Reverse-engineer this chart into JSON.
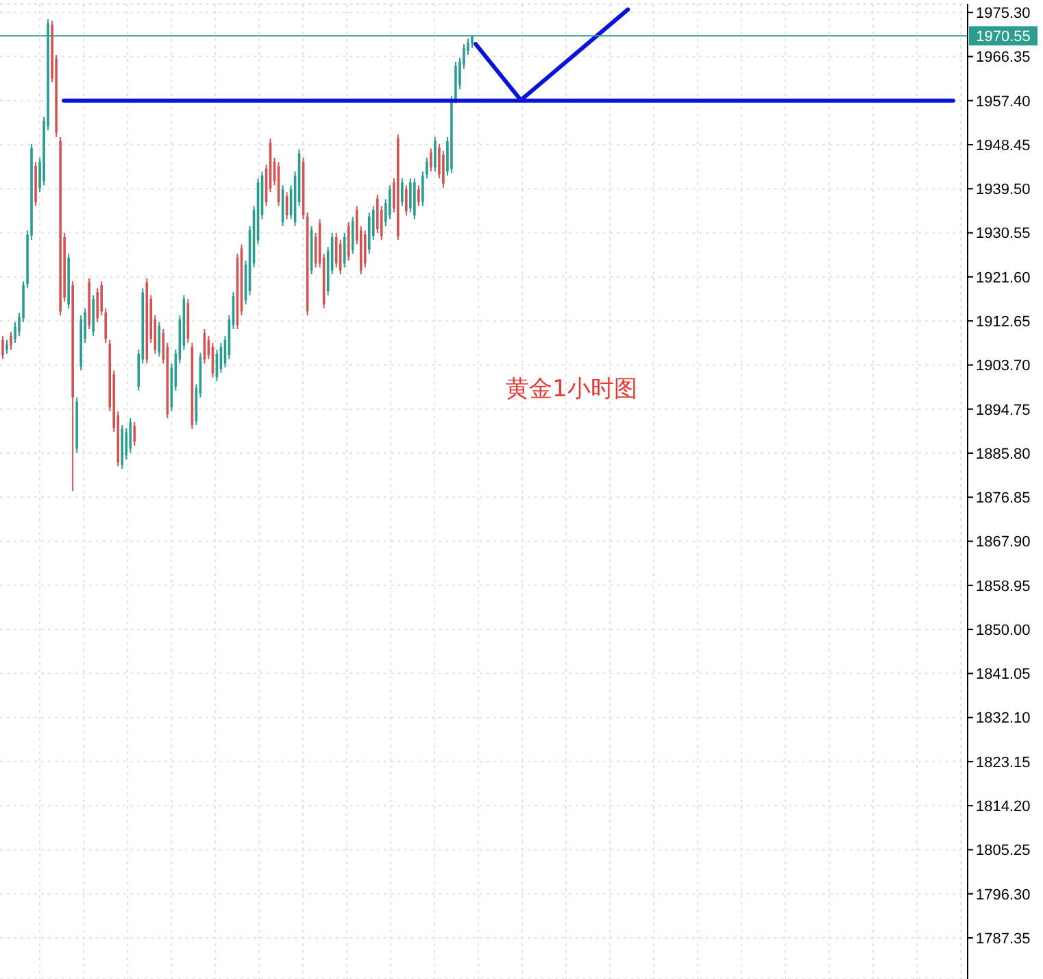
{
  "chart_data": {
    "type": "candlestick",
    "tick_labels": "y",
    "grid": true,
    "categories": [
      null,
      null,
      null,
      null,
      null,
      null,
      null,
      null,
      null,
      null,
      null,
      null,
      null,
      null,
      null,
      null,
      null,
      null,
      null,
      null,
      null,
      null,
      null,
      null,
      null,
      null,
      null,
      null,
      null,
      null,
      null,
      null,
      null,
      null,
      null,
      null,
      null,
      null,
      null,
      null,
      null,
      null,
      null,
      null,
      null,
      null,
      null,
      null,
      null,
      null,
      null,
      null,
      null,
      null,
      null,
      null,
      null,
      null,
      null,
      null,
      null,
      null,
      null,
      null,
      null,
      null,
      null,
      null,
      null,
      null,
      null,
      null,
      null,
      null,
      null,
      null,
      null,
      null,
      null,
      null,
      null,
      null,
      null,
      null,
      null,
      null,
      null,
      null,
      null,
      null,
      null,
      null,
      null,
      null,
      null,
      null,
      null,
      null,
      null,
      null,
      null,
      null,
      null,
      null,
      null,
      null,
      null,
      null,
      null,
      null,
      null,
      null,
      null,
      null,
      null,
      null,
      null,
      null,
      null,
      null,
      null,
      null,
      null,
      null,
      null,
      null,
      null,
      null,
      null,
      null,
      null,
      null,
      null,
      null,
      null,
      null,
      null,
      null,
      null,
      null,
      null,
      null,
      null,
      null,
      null,
      null,
      null,
      null,
      null,
      null,
      null,
      null,
      null,
      null,
      null,
      null,
      null,
      null,
      null,
      null,
      null,
      null,
      null,
      null,
      null,
      null,
      null,
      null,
      null,
      null,
      null,
      null,
      null,
      null,
      null,
      null,
      null,
      null,
      null,
      null,
      null,
      null,
      null,
      null,
      null,
      null,
      null,
      null,
      null,
      null,
      null,
      null,
      null,
      null,
      null,
      null,
      null,
      null,
      null,
      null,
      null,
      null,
      null,
      null,
      null,
      null,
      null,
      null,
      null,
      null,
      null,
      null,
      null,
      null,
      null,
      null,
      null,
      null,
      null,
      null,
      null,
      null,
      null,
      null,
      null,
      null,
      null,
      null,
      null,
      null,
      null,
      null,
      null,
      null,
      null
    ],
    "ohlc": [
      [
        1908.8,
        1909.6,
        1904.9,
        1905.7
      ],
      [
        1906.8,
        1908.8,
        1906.0,
        1907.9
      ],
      [
        1909.6,
        1910.4,
        1906.8,
        1907.6
      ],
      [
        1909.0,
        1912.4,
        1908.2,
        1911.5
      ],
      [
        1910.5,
        1914.3,
        1909.6,
        1913.5
      ],
      [
        1913.2,
        1920.7,
        1912.4,
        1919.9
      ],
      [
        1920.2,
        1931.0,
        1919.3,
        1930.2
      ],
      [
        1930.0,
        1948.6,
        1929.1,
        1947.8
      ],
      [
        1944.1,
        1944.9,
        1936.0,
        1936.8
      ],
      [
        1939.6,
        1945.8,
        1938.8,
        1945.0
      ],
      [
        1941.0,
        1954.1,
        1940.2,
        1953.3
      ],
      [
        1952.2,
        1973.9,
        1951.4,
        1973.1
      ],
      [
        1972.8,
        1973.6,
        1961.1,
        1961.9
      ],
      [
        1965.9,
        1966.7,
        1950.0,
        1950.9
      ],
      [
        1949.2,
        1950.0,
        1913.8,
        1914.6
      ],
      [
        1929.7,
        1930.5,
        1916.6,
        1917.4
      ],
      [
        1916.0,
        1926.3,
        1915.2,
        1925.5
      ],
      [
        1919.9,
        1920.7,
        1878.1,
        1897.1
      ],
      [
        1886.7,
        1897.1,
        1885.9,
        1896.3
      ],
      [
        1903.4,
        1913.8,
        1902.6,
        1913.0
      ],
      [
        1909.0,
        1915.2,
        1908.2,
        1914.4
      ],
      [
        1920.5,
        1921.3,
        1911.0,
        1911.8
      ],
      [
        1910.5,
        1917.9,
        1909.6,
        1917.1
      ],
      [
        1918.5,
        1919.3,
        1912.4,
        1913.2
      ],
      [
        1919.9,
        1920.7,
        1913.8,
        1914.6
      ],
      [
        1914.4,
        1915.2,
        1908.2,
        1909.0
      ],
      [
        1908.0,
        1908.8,
        1894.3,
        1895.1
      ],
      [
        1901.8,
        1902.6,
        1890.1,
        1890.9
      ],
      [
        1893.5,
        1894.3,
        1883.1,
        1883.9
      ],
      [
        1883.4,
        1891.5,
        1882.6,
        1890.7
      ],
      [
        1885.3,
        1890.9,
        1884.5,
        1890.1
      ],
      [
        1886.7,
        1892.9,
        1885.9,
        1892.1
      ],
      [
        1891.3,
        1892.1,
        1887.3,
        1888.1
      ],
      [
        1899.3,
        1906.8,
        1898.5,
        1906.0
      ],
      [
        1904.8,
        1919.3,
        1904.0,
        1918.5
      ],
      [
        1920.5,
        1921.3,
        1904.0,
        1904.8
      ],
      [
        1917.1,
        1917.9,
        1908.2,
        1909.0
      ],
      [
        1913.0,
        1913.8,
        1906.0,
        1906.8
      ],
      [
        1906.2,
        1912.4,
        1905.4,
        1911.6
      ],
      [
        1910.2,
        1911.0,
        1904.0,
        1904.8
      ],
      [
        1907.4,
        1908.2,
        1892.9,
        1893.7
      ],
      [
        1895.1,
        1904.0,
        1894.3,
        1903.2
      ],
      [
        1899.3,
        1906.8,
        1898.5,
        1906.0
      ],
      [
        1904.8,
        1913.8,
        1904.0,
        1913.0
      ],
      [
        1907.6,
        1917.9,
        1906.8,
        1917.1
      ],
      [
        1916.3,
        1917.1,
        1908.2,
        1909.0
      ],
      [
        1907.4,
        1908.2,
        1890.7,
        1891.5
      ],
      [
        1892.3,
        1899.8,
        1891.5,
        1899.0
      ],
      [
        1897.9,
        1906.2,
        1897.1,
        1905.4
      ],
      [
        1910.2,
        1911.0,
        1904.0,
        1904.8
      ],
      [
        1908.8,
        1909.6,
        1904.9,
        1905.7
      ],
      [
        1907.4,
        1908.2,
        1901.2,
        1902.0
      ],
      [
        1901.2,
        1906.8,
        1900.4,
        1906.0
      ],
      [
        1902.9,
        1908.2,
        1902.1,
        1907.4
      ],
      [
        1904.0,
        1909.6,
        1903.2,
        1908.8
      ],
      [
        1905.7,
        1913.8,
        1904.9,
        1913.0
      ],
      [
        1911.8,
        1918.5,
        1911.0,
        1917.7
      ],
      [
        1925.5,
        1926.3,
        1911.0,
        1911.8
      ],
      [
        1927.4,
        1928.2,
        1913.8,
        1914.6
      ],
      [
        1916.8,
        1924.9,
        1916.0,
        1924.1
      ],
      [
        1918.7,
        1931.9,
        1917.9,
        1931.1
      ],
      [
        1924.3,
        1936.0,
        1923.5,
        1935.2
      ],
      [
        1929.0,
        1941.6,
        1928.2,
        1940.8
      ],
      [
        1934.1,
        1943.0,
        1933.3,
        1942.2
      ],
      [
        1943.6,
        1944.4,
        1936.0,
        1936.8
      ],
      [
        1948.9,
        1949.7,
        1938.8,
        1939.6
      ],
      [
        1945.0,
        1945.8,
        1940.2,
        1941.0
      ],
      [
        1944.1,
        1944.9,
        1936.0,
        1936.8
      ],
      [
        1932.7,
        1940.2,
        1931.9,
        1939.4
      ],
      [
        1938.0,
        1938.8,
        1933.3,
        1934.1
      ],
      [
        1934.1,
        1940.2,
        1933.3,
        1939.4
      ],
      [
        1932.7,
        1943.0,
        1931.9,
        1942.2
      ],
      [
        1936.8,
        1947.5,
        1936.0,
        1946.7
      ],
      [
        1945.0,
        1945.8,
        1933.3,
        1934.1
      ],
      [
        1933.9,
        1934.7,
        1913.8,
        1914.6
      ],
      [
        1922.9,
        1931.9,
        1922.1,
        1931.1
      ],
      [
        1929.7,
        1930.5,
        1923.5,
        1924.3
      ],
      [
        1932.5,
        1933.3,
        1923.5,
        1924.3
      ],
      [
        1925.5,
        1926.3,
        1915.2,
        1916.0
      ],
      [
        1918.7,
        1927.7,
        1917.9,
        1926.9
      ],
      [
        1922.9,
        1930.5,
        1922.1,
        1929.7
      ],
      [
        1929.7,
        1930.5,
        1923.5,
        1924.3
      ],
      [
        1928.3,
        1929.1,
        1922.1,
        1922.9
      ],
      [
        1924.3,
        1930.5,
        1923.5,
        1929.7
      ],
      [
        1931.9,
        1932.7,
        1924.9,
        1925.7
      ],
      [
        1927.1,
        1933.8,
        1926.3,
        1933.0
      ],
      [
        1935.2,
        1936.0,
        1928.2,
        1929.0
      ],
      [
        1931.1,
        1931.9,
        1922.1,
        1922.9
      ],
      [
        1930.2,
        1931.0,
        1923.5,
        1924.3
      ],
      [
        1927.1,
        1934.7,
        1926.3,
        1933.9
      ],
      [
        1929.9,
        1936.0,
        1929.1,
        1935.2
      ],
      [
        1937.5,
        1938.3,
        1930.5,
        1931.3
      ],
      [
        1935.2,
        1936.0,
        1929.1,
        1929.9
      ],
      [
        1932.7,
        1937.4,
        1931.9,
        1936.6
      ],
      [
        1934.1,
        1940.2,
        1933.3,
        1939.4
      ],
      [
        1940.8,
        1941.6,
        1934.7,
        1935.5
      ],
      [
        1949.7,
        1950.5,
        1929.1,
        1929.9
      ],
      [
        1936.8,
        1941.6,
        1936.0,
        1940.8
      ],
      [
        1939.4,
        1940.2,
        1934.1,
        1934.9
      ],
      [
        1935.5,
        1941.6,
        1934.7,
        1940.8
      ],
      [
        1934.1,
        1941.6,
        1933.3,
        1940.8
      ],
      [
        1939.4,
        1940.2,
        1936.0,
        1936.8
      ],
      [
        1936.8,
        1943.0,
        1936.0,
        1942.2
      ],
      [
        1942.4,
        1945.8,
        1941.6,
        1945.0
      ],
      [
        1946.9,
        1947.7,
        1943.0,
        1943.8
      ],
      [
        1943.8,
        1950.0,
        1943.0,
        1949.2
      ],
      [
        1947.8,
        1948.6,
        1941.6,
        1942.4
      ],
      [
        1946.4,
        1947.2,
        1939.7,
        1940.5
      ],
      [
        1943.0,
        1950.0,
        1942.2,
        1949.2
      ],
      [
        1943.5,
        1958.3,
        1942.7,
        1957.5
      ],
      [
        1957.7,
        1965.3,
        1956.9,
        1964.5
      ],
      [
        1960.5,
        1966.1,
        1959.7,
        1965.3
      ],
      [
        1964.7,
        1968.9,
        1963.9,
        1968.1
      ],
      [
        1967.5,
        1970.0,
        1966.7,
        1969.2
      ],
      [
        1969.0,
        1970.6,
        1968.1,
        1970.55
      ],
      null,
      null,
      null,
      null,
      null,
      null,
      null,
      null,
      null,
      null,
      null,
      null,
      null,
      null,
      null,
      null,
      null,
      null,
      null,
      null,
      null,
      null,
      null,
      null,
      null,
      null,
      null,
      null,
      null,
      null,
      null,
      null,
      null,
      null,
      null,
      null,
      null,
      null,
      null,
      null,
      null,
      null,
      null,
      null,
      null,
      null,
      null,
      null,
      null,
      null,
      null,
      null,
      null,
      null,
      null,
      null,
      null,
      null,
      null,
      null,
      null,
      null,
      null,
      null,
      null,
      null,
      null,
      null,
      null,
      null,
      null,
      null,
      null,
      null,
      null,
      null,
      null,
      null,
      null,
      null,
      null,
      null,
      null,
      null,
      null,
      null,
      null,
      null,
      null,
      null,
      null,
      null,
      null,
      null,
      null,
      null,
      null,
      null,
      null,
      null,
      null,
      null,
      null,
      null,
      null,
      null,
      null,
      null,
      null,
      null,
      null,
      null,
      null,
      null,
      null,
      null,
      null,
      null,
      null,
      null
    ],
    "colors": [
      "#d05454",
      "#2a9d8f",
      "#d05454",
      "#2a9d8f",
      "#2a9d8f",
      "#2a9d8f",
      "#2a9d8f",
      "#2a9d8f",
      "#d05454",
      "#2a9d8f",
      "#2a9d8f",
      "#2a9d8f",
      "#d05454",
      "#d05454",
      "#d05454",
      "#d05454",
      "#2a9d8f",
      "#d05454",
      "#2a9d8f",
      "#2a9d8f",
      "#2a9d8f",
      "#d05454",
      "#2a9d8f",
      "#d05454",
      "#d05454",
      "#d05454",
      "#d05454",
      "#d05454",
      "#d05454",
      "#2a9d8f",
      "#2a9d8f",
      "#2a9d8f",
      "#d05454",
      "#2a9d8f",
      "#2a9d8f",
      "#d05454",
      "#d05454",
      "#d05454",
      "#2a9d8f",
      "#d05454",
      "#d05454",
      "#2a9d8f",
      "#2a9d8f",
      "#2a9d8f",
      "#2a9d8f",
      "#d05454",
      "#d05454",
      "#2a9d8f",
      "#2a9d8f",
      "#d05454",
      "#d05454",
      "#d05454",
      "#2a9d8f",
      "#2a9d8f",
      "#2a9d8f",
      "#2a9d8f",
      "#2a9d8f",
      "#d05454",
      "#d05454",
      "#2a9d8f",
      "#2a9d8f",
      "#2a9d8f",
      "#2a9d8f",
      "#2a9d8f",
      "#d05454",
      "#d05454",
      "#d05454",
      "#d05454",
      "#2a9d8f",
      "#d05454",
      "#2a9d8f",
      "#2a9d8f",
      "#2a9d8f",
      "#d05454",
      "#d05454",
      "#2a9d8f",
      "#d05454",
      "#d05454",
      "#d05454",
      "#2a9d8f",
      "#2a9d8f",
      "#d05454",
      "#d05454",
      "#2a9d8f",
      "#d05454",
      "#2a9d8f",
      "#d05454",
      "#d05454",
      "#d05454",
      "#2a9d8f",
      "#2a9d8f",
      "#d05454",
      "#d05454",
      "#2a9d8f",
      "#2a9d8f",
      "#d05454",
      "#d05454",
      "#2a9d8f",
      "#d05454",
      "#2a9d8f",
      "#2a9d8f",
      "#d05454",
      "#2a9d8f",
      "#2a9d8f",
      "#d05454",
      "#2a9d8f",
      "#d05454",
      "#d05454",
      "#2a9d8f",
      "#2a9d8f",
      "#2a9d8f",
      "#2a9d8f",
      "#2a9d8f",
      "#2a9d8f",
      "#2a9d8f",
      null,
      null,
      null,
      null,
      null,
      null,
      null,
      null,
      null,
      null,
      null,
      null,
      null,
      null,
      null,
      null,
      null,
      null,
      null,
      null,
      null,
      null,
      null,
      null,
      null,
      null,
      null,
      null,
      null,
      null,
      null,
      null,
      null,
      null,
      null,
      null,
      null,
      null,
      null,
      null,
      null,
      null,
      null,
      null,
      null,
      null,
      null,
      null,
      null,
      null,
      null,
      null,
      null,
      null,
      null,
      null,
      null,
      null,
      null,
      null,
      null,
      null,
      null,
      null,
      null,
      null,
      null,
      null,
      null,
      null,
      null,
      null,
      null,
      null,
      null,
      null,
      null,
      null,
      null,
      null,
      null,
      null,
      null,
      null,
      null,
      null,
      null,
      null,
      null,
      null,
      null,
      null,
      null,
      null,
      null,
      null,
      null,
      null,
      null,
      null,
      null,
      null,
      null,
      null,
      null,
      null,
      null,
      null,
      null,
      null,
      null,
      null,
      null,
      null,
      null,
      null,
      null,
      null,
      null,
      null
    ],
    "series": [
      {
        "type": "line",
        "color": "#0a14d8",
        "values": [
          null,
          null,
          null,
          null,
          null,
          null,
          null,
          null,
          null,
          null,
          null,
          null,
          null,
          null,
          null,
          1957.4,
          null,
          null,
          null,
          null,
          null,
          null,
          null,
          null,
          null,
          null,
          null,
          null,
          null,
          null,
          null,
          null,
          null,
          null,
          null,
          null,
          null,
          null,
          null,
          null,
          null,
          null,
          null,
          null,
          null,
          null,
          null,
          null,
          null,
          null,
          null,
          null,
          null,
          null,
          null,
          null,
          null,
          null,
          null,
          null,
          null,
          null,
          null,
          null,
          null,
          null,
          null,
          null,
          null,
          null,
          null,
          null,
          null,
          null,
          null,
          null,
          null,
          null,
          null,
          null,
          null,
          null,
          null,
          null,
          null,
          null,
          null,
          null,
          null,
          null,
          null,
          null,
          null,
          null,
          null,
          null,
          null,
          null,
          null,
          null,
          null,
          null,
          null,
          null,
          null,
          null,
          null,
          null,
          null,
          null,
          null,
          null,
          null,
          null,
          null,
          null,
          null,
          null,
          null,
          null,
          null,
          null,
          null,
          null,
          null,
          null,
          null,
          null,
          null,
          null,
          null,
          null,
          null,
          null,
          null,
          null,
          null,
          null,
          null,
          null,
          null,
          null,
          null,
          null,
          null,
          null,
          null,
          null,
          null,
          null,
          null,
          null,
          null,
          null,
          null,
          null,
          null,
          null,
          null,
          null,
          null,
          null,
          null,
          null,
          null,
          null,
          null,
          null,
          null,
          null,
          null,
          null,
          null,
          null,
          null,
          null,
          null,
          null,
          null,
          null,
          null,
          null,
          null,
          null,
          null,
          null,
          null,
          null,
          null,
          null,
          null,
          null,
          null,
          null,
          null,
          null,
          null,
          null,
          null,
          null,
          null,
          null,
          null,
          null,
          null,
          null,
          null,
          null,
          null,
          null,
          null,
          null,
          null,
          null,
          null,
          null,
          null,
          null,
          null,
          null,
          null,
          null,
          null,
          null,
          null,
          null,
          null,
          null,
          null,
          null,
          null,
          1957.4,
          null,
          null,
          null
        ]
      },
      {
        "type": "line",
        "color": "#0a14d8",
        "values": [
          null,
          null,
          null,
          null,
          null,
          null,
          null,
          null,
          null,
          null,
          null,
          null,
          null,
          null,
          null,
          null,
          null,
          null,
          null,
          null,
          null,
          null,
          null,
          null,
          null,
          null,
          null,
          null,
          null,
          null,
          null,
          null,
          null,
          null,
          null,
          null,
          null,
          null,
          null,
          null,
          null,
          null,
          null,
          null,
          null,
          null,
          null,
          null,
          null,
          null,
          null,
          null,
          null,
          null,
          null,
          null,
          null,
          null,
          null,
          null,
          null,
          null,
          null,
          null,
          null,
          null,
          null,
          null,
          null,
          null,
          null,
          null,
          null,
          null,
          null,
          null,
          null,
          null,
          null,
          null,
          null,
          null,
          null,
          null,
          null,
          null,
          null,
          null,
          null,
          null,
          null,
          null,
          null,
          null,
          null,
          null,
          null,
          null,
          null,
          null,
          null,
          null,
          null,
          null,
          null,
          null,
          null,
          null,
          null,
          null,
          null,
          null,
          null,
          null,
          null,
          1968.9,
          null,
          null,
          null,
          null,
          null,
          null,
          null,
          null,
          null,
          null,
          1957.5,
          null,
          null,
          null,
          null,
          null,
          null,
          null,
          null,
          null,
          null,
          null,
          null,
          null,
          null,
          null,
          null,
          null,
          null,
          null,
          null,
          null,
          null,
          null,
          null,
          null,
          1975.9,
          null,
          null,
          null,
          null,
          null,
          null,
          null,
          null,
          null,
          null,
          null,
          null,
          null,
          null,
          null,
          null,
          null,
          null,
          null,
          null,
          null,
          null,
          null,
          null,
          null,
          null,
          null,
          null,
          null,
          null,
          null,
          null,
          null,
          null,
          null,
          null,
          null,
          null,
          null,
          null,
          null,
          null,
          null,
          null,
          null,
          null,
          null,
          null,
          null,
          null,
          null,
          null,
          null,
          null,
          null,
          null,
          null,
          null,
          null,
          null,
          null,
          null,
          null,
          null,
          null,
          null,
          null,
          null,
          null,
          null,
          null,
          null,
          null,
          null,
          null,
          null,
          null,
          null,
          null,
          null,
          null,
          null
        ]
      }
    ],
    "ylim": [
      1779.0,
      1977.0
    ],
    "yticks": [
      {
        "value": 1975.3,
        "label": "1975.30"
      },
      {
        "value": 1966.35,
        "label": "1966.35"
      },
      {
        "value": 1957.4,
        "label": "1957.40"
      },
      {
        "value": 1948.45,
        "label": "1948.45"
      },
      {
        "value": 1939.5,
        "label": "1939.50"
      },
      {
        "value": 1930.55,
        "label": "1930.55"
      },
      {
        "value": 1921.6,
        "label": "1921.60"
      },
      {
        "value": 1912.65,
        "label": "1912.65"
      },
      {
        "value": 1903.7,
        "label": "1903.70"
      },
      {
        "value": 1894.75,
        "label": "1894.75"
      },
      {
        "value": 1885.8,
        "label": "1885.80"
      },
      {
        "value": 1876.85,
        "label": "1876.85"
      },
      {
        "value": 1867.9,
        "label": "1867.90"
      },
      {
        "value": 1858.95,
        "label": "1858.95"
      },
      {
        "value": 1850,
        "label": "1850.00"
      },
      {
        "value": 1841.05,
        "label": "1841.05"
      },
      {
        "value": 1832.1,
        "label": "1832.10"
      },
      {
        "value": 1823.15,
        "label": "1823.15"
      },
      {
        "value": 1814.2,
        "label": "1814.20"
      },
      {
        "value": 1805.25,
        "label": "1805.25"
      },
      {
        "value": 1796.3,
        "label": "1796.30"
      },
      {
        "value": 1787.35,
        "label": "1787.35"
      }
    ],
    "ref_lines": [
      {
        "axis": "y",
        "value": 1970.55,
        "label": "1970.55",
        "color": "#2a9d8f"
      }
    ],
    "annotations": [
      "黄金1小时图"
    ]
  }
}
